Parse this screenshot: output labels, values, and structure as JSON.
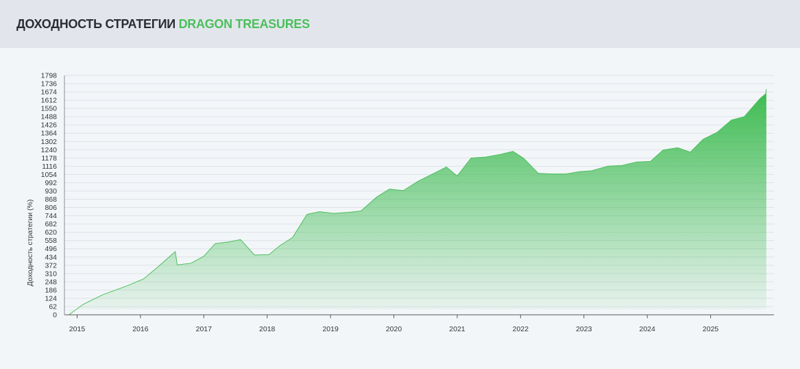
{
  "header": {
    "title_main": "ДОХОДНОСТЬ СТРАТЕГИИ",
    "title_accent": "DRAGON TREASURES"
  },
  "colors": {
    "accent": "#4cbf5c",
    "line": "#4cbf5c",
    "fill_top": "#3dbb50",
    "grid": "#dde2e8"
  },
  "chart_data": {
    "type": "area",
    "title": "ДОХОДНОСТЬ СТРАТЕГИИ DRAGON TREASURES",
    "xlabel": "",
    "ylabel": "Доходность стратегии (%)",
    "grid": true,
    "ylim": [
      0,
      1798
    ],
    "yticks": [
      0,
      62,
      124,
      186,
      248,
      310,
      372,
      434,
      496,
      558,
      620,
      682,
      744,
      806,
      868,
      930,
      992,
      1054,
      1116,
      1178,
      1240,
      1302,
      1364,
      1426,
      1488,
      1550,
      1612,
      1674,
      1736,
      1798
    ],
    "xlim": [
      2014.8,
      2026.0
    ],
    "xticks": [
      {
        "value": 2015,
        "label": "2015"
      },
      {
        "value": 2016,
        "label": "2016"
      },
      {
        "value": 2017,
        "label": "2017"
      },
      {
        "value": 2018,
        "label": "2018"
      },
      {
        "value": 2019,
        "label": "2019"
      },
      {
        "value": 2020,
        "label": "2020"
      },
      {
        "value": 2021,
        "label": "2021"
      },
      {
        "value": 2022,
        "label": "2022"
      },
      {
        "value": 2023,
        "label": "2023"
      },
      {
        "value": 2024,
        "label": "2024"
      },
      {
        "value": 2025,
        "label": "2025"
      }
    ],
    "x": [
      2014.87,
      2015.1,
      2015.4,
      2015.8,
      2016.05,
      2016.25,
      2016.55,
      2016.58,
      2016.8,
      2017.0,
      2017.18,
      2017.4,
      2017.58,
      2017.8,
      2018.03,
      2018.2,
      2018.4,
      2018.63,
      2018.83,
      2019.05,
      2019.3,
      2019.48,
      2019.73,
      2019.93,
      2020.15,
      2020.38,
      2020.6,
      2020.83,
      2021.0,
      2021.22,
      2021.45,
      2021.68,
      2021.88,
      2022.05,
      2022.28,
      2022.5,
      2022.72,
      2022.93,
      2023.12,
      2023.38,
      2023.6,
      2023.83,
      2024.05,
      2024.25,
      2024.48,
      2024.68,
      2024.88,
      2025.1,
      2025.33,
      2025.53,
      2025.78,
      2025.87,
      2025.88
    ],
    "y": [
      0,
      80,
      150,
      220,
      270,
      350,
      475,
      375,
      388,
      440,
      535,
      548,
      565,
      450,
      452,
      520,
      580,
      755,
      775,
      762,
      770,
      780,
      885,
      945,
      933,
      1003,
      1055,
      1110,
      1043,
      1178,
      1185,
      1205,
      1228,
      1175,
      1063,
      1058,
      1058,
      1075,
      1082,
      1117,
      1122,
      1148,
      1152,
      1238,
      1255,
      1222,
      1318,
      1370,
      1463,
      1488,
      1625,
      1660,
      1695
    ]
  }
}
